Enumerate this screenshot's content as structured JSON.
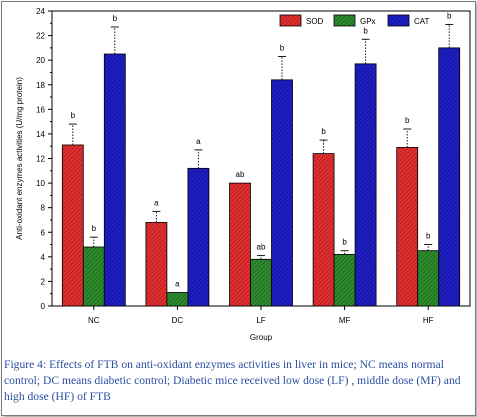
{
  "chart_data": {
    "type": "bar",
    "title": "",
    "xlabel": "Group",
    "ylabel": "Anti-oxidant enzymes activities (U/mg protein)",
    "categories": [
      "NC",
      "DC",
      "LF",
      "MF",
      "HF"
    ],
    "ylim": [
      0,
      24
    ],
    "yticks": [
      "0",
      "2",
      "4",
      "6",
      "8",
      "10",
      "12",
      "14",
      "16",
      "18",
      "20",
      "22",
      "24"
    ],
    "legend_position": "top-right",
    "grid": false,
    "series": [
      {
        "name": "SOD",
        "color": "#e03030",
        "values": [
          13.1,
          6.8,
          10.0,
          12.4,
          12.9
        ],
        "errors": [
          1.7,
          0.9,
          0.0,
          1.1,
          1.5
        ],
        "labels": [
          "b",
          "a",
          "ab",
          "b",
          "b"
        ]
      },
      {
        "name": "GPx",
        "color": "#2e8b2e",
        "values": [
          4.8,
          1.1,
          3.8,
          4.2,
          4.5
        ],
        "errors": [
          0.8,
          0.0,
          0.3,
          0.3,
          0.5
        ],
        "labels": [
          "b",
          "a",
          "ab",
          "b",
          "b"
        ]
      },
      {
        "name": "CAT",
        "color": "#2020c8",
        "values": [
          20.5,
          11.2,
          18.4,
          19.7,
          21.0
        ],
        "errors": [
          2.2,
          1.5,
          1.9,
          2.0,
          1.9
        ],
        "labels": [
          "b",
          "a",
          "b",
          "b",
          "b"
        ]
      }
    ]
  },
  "caption": "Figure 4: Effects of FTB on anti-oxidant enzymes activities in liver in mice; NC means normal control; DC means diabetic control; Diabetic mice received low dose (LF) , middle dose (MF) and high dose (HF) of FTB"
}
